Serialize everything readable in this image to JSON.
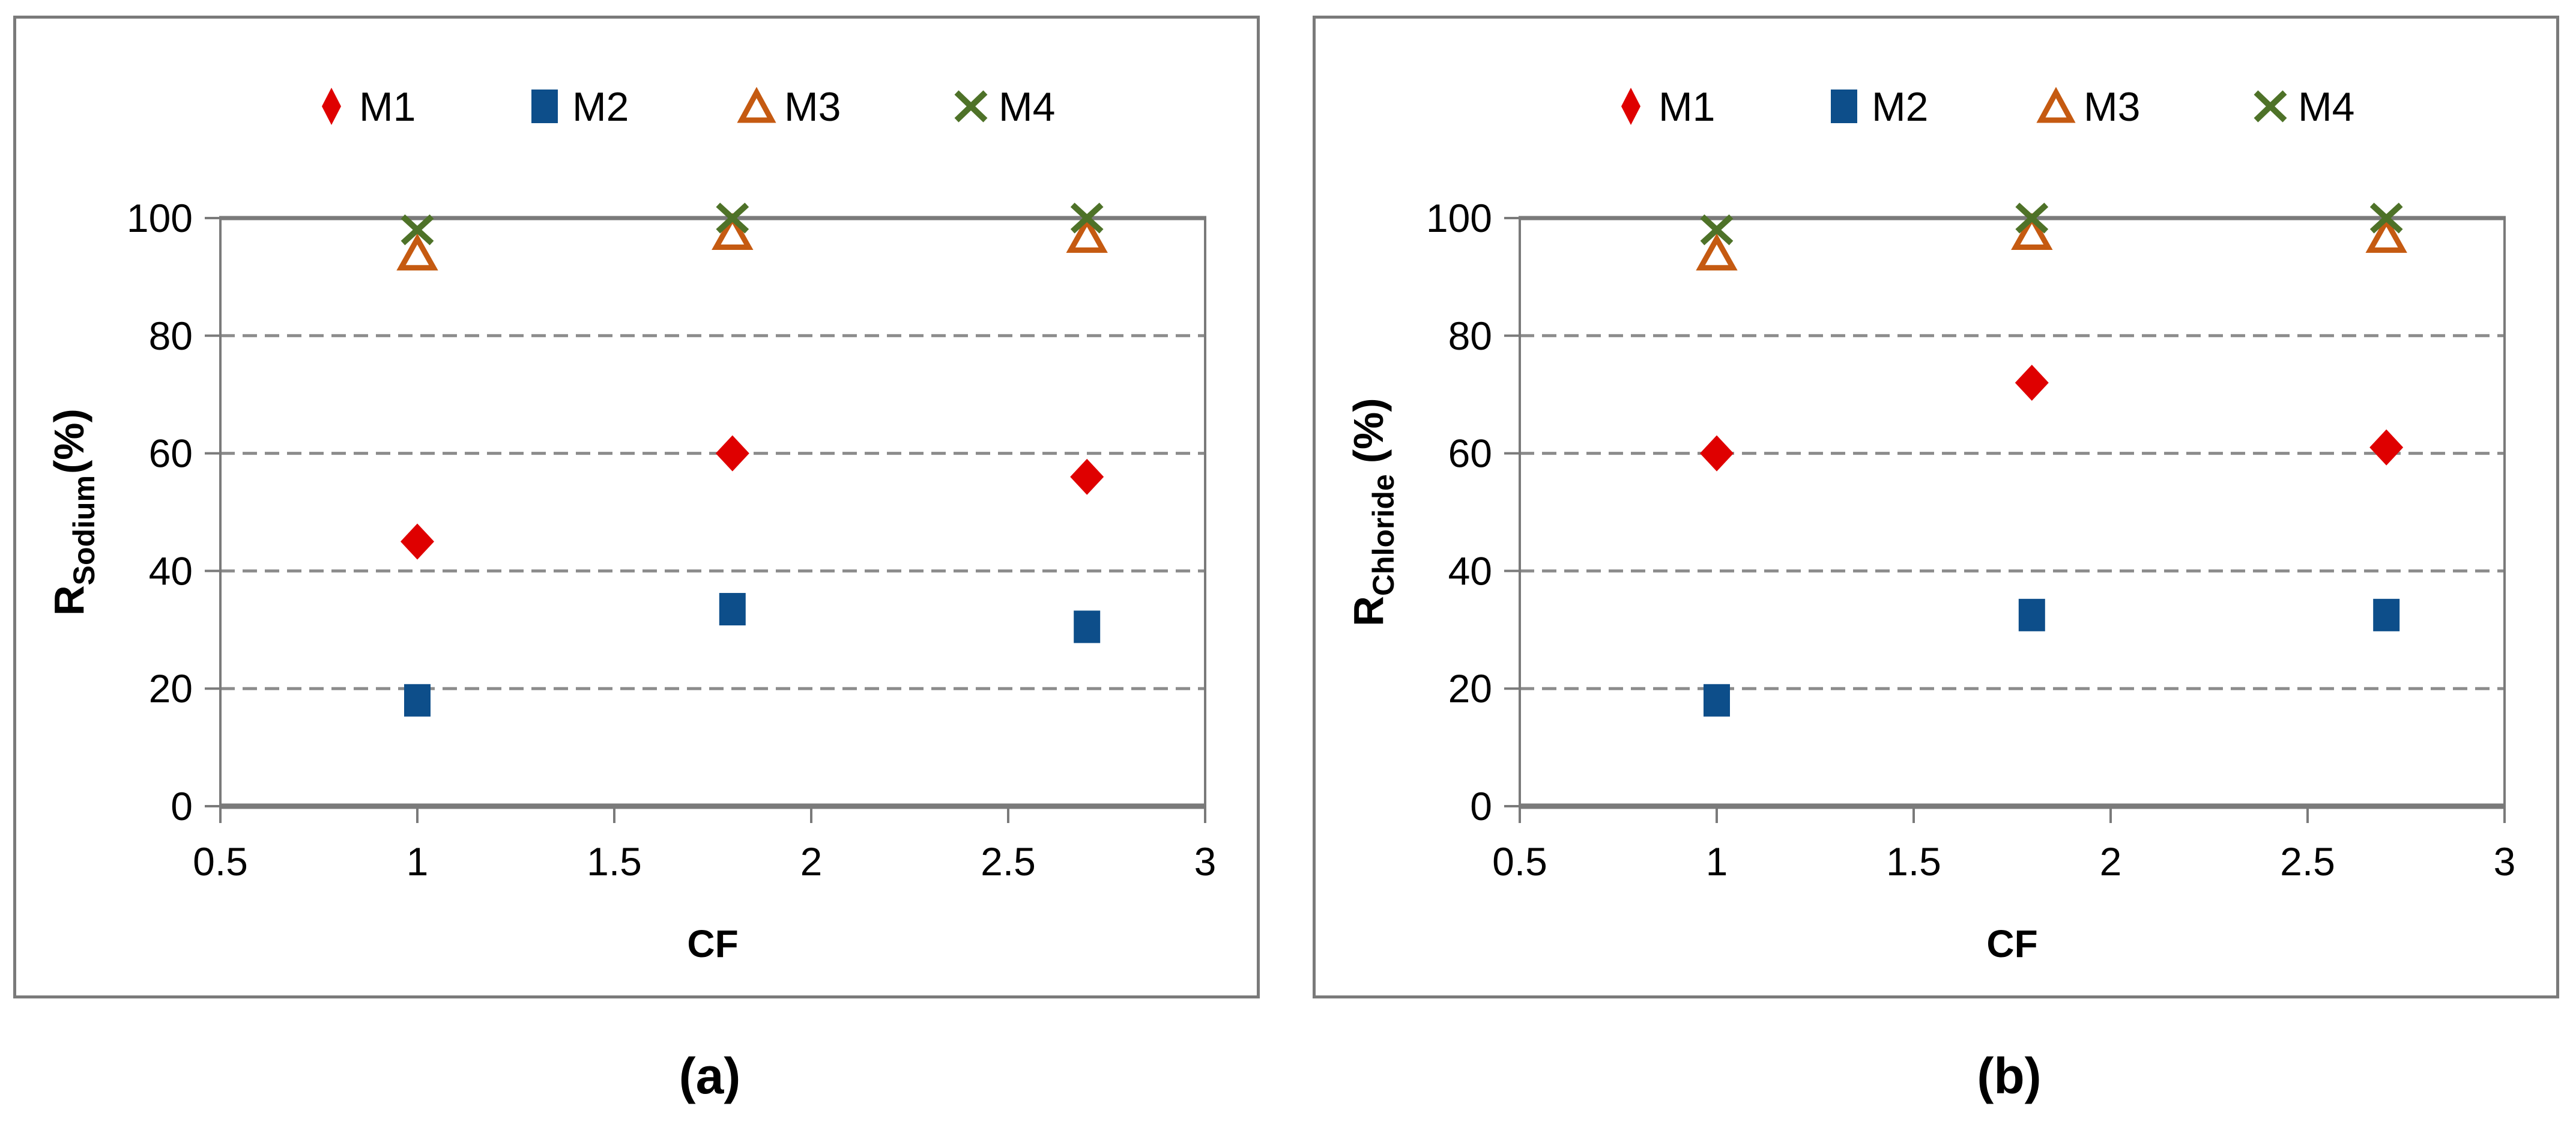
{
  "colors": {
    "background": "#ffffff",
    "axis": "#7a7a7a",
    "gridline": "#8c8c8c",
    "text": "#000000",
    "m1_red": "#df0000",
    "m2_blue": "#0d4e8a",
    "m3_orange": "#c55a11",
    "m4_green": "#4e7228"
  },
  "chart_data": [
    {
      "id": "a",
      "type": "scatter",
      "caption": "(a)",
      "xlabel": "CF",
      "ylabel": {
        "main": "R",
        "sub": "Sodium",
        "suffix": "(%)"
      },
      "xlim": [
        0.5,
        3
      ],
      "ylim": [
        0,
        100
      ],
      "xticks": [
        0.5,
        1,
        1.5,
        2,
        2.5,
        3
      ],
      "xtick_labels": [
        "0.5",
        "1",
        "1.5",
        "2",
        "2.5",
        "3"
      ],
      "yticks": [
        0,
        20,
        40,
        60,
        80,
        100
      ],
      "ytick_labels": [
        "0",
        "20",
        "40",
        "60",
        "80",
        "100"
      ],
      "grid": "horizontal dashed at 20,40,60,80; solid border at 100",
      "legend_position": "top-center",
      "x": [
        1,
        1.8,
        2.7
      ],
      "series": [
        {
          "name": "M1",
          "marker": "diamond",
          "color": "#df0000",
          "values": [
            45,
            60,
            56
          ]
        },
        {
          "name": "M2",
          "marker": "square",
          "color": "#0d4e8a",
          "values": [
            18,
            33.5,
            30.5
          ]
        },
        {
          "name": "M3",
          "marker": "triangle-open",
          "color": "#c55a11",
          "values": [
            94,
            97.5,
            97
          ]
        },
        {
          "name": "M4",
          "marker": "x",
          "color": "#4e7228",
          "values": [
            98,
            100,
            100
          ]
        }
      ]
    },
    {
      "id": "b",
      "type": "scatter",
      "caption": "(b)",
      "xlabel": "CF",
      "ylabel": {
        "main": "R",
        "sub": "Chloride",
        "suffix": " (%)"
      },
      "xlim": [
        0.5,
        3
      ],
      "ylim": [
        0,
        100
      ],
      "xticks": [
        0.5,
        1,
        1.5,
        2,
        2.5,
        3
      ],
      "xtick_labels": [
        "0.5",
        "1",
        "1.5",
        "2",
        "2.5",
        "3"
      ],
      "yticks": [
        0,
        20,
        40,
        60,
        80,
        100
      ],
      "ytick_labels": [
        "0",
        "20",
        "40",
        "60",
        "80",
        "100"
      ],
      "grid": "horizontal dashed at 20,40,60,80; solid border at 100",
      "legend_position": "top-center",
      "x": [
        1,
        1.8,
        2.7
      ],
      "series": [
        {
          "name": "M1",
          "marker": "diamond",
          "color": "#df0000",
          "values": [
            60,
            72,
            61
          ]
        },
        {
          "name": "M2",
          "marker": "square",
          "color": "#0d4e8a",
          "values": [
            18,
            32.5,
            32.5
          ]
        },
        {
          "name": "M3",
          "marker": "triangle-open",
          "color": "#c55a11",
          "values": [
            94,
            97.5,
            97
          ]
        },
        {
          "name": "M4",
          "marker": "x",
          "color": "#4e7228",
          "values": [
            98,
            100,
            100
          ]
        }
      ]
    }
  ]
}
